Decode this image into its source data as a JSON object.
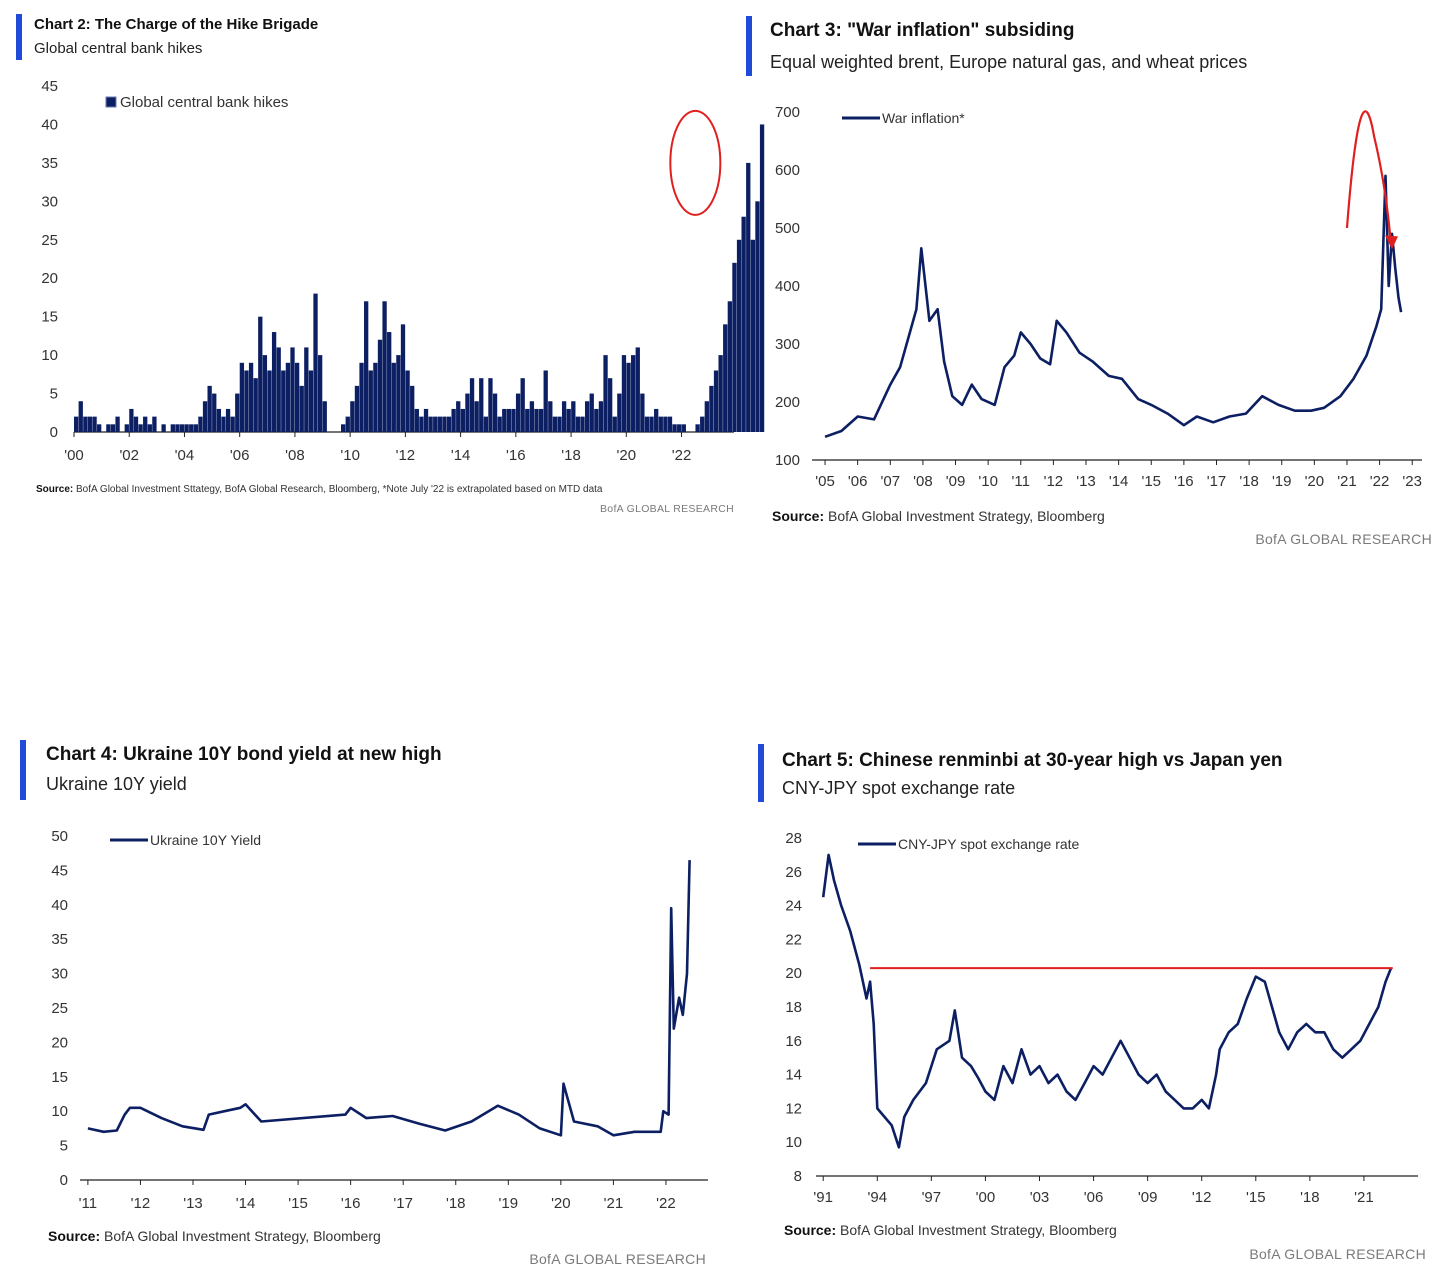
{
  "colors": {
    "navy": "#0d1f63",
    "accent_bar": "#1f4bd8",
    "highlight_red": "#e02020",
    "axis": "#222222"
  },
  "panels": [
    {
      "title": "Chart 2: The Charge of the Hike Brigade",
      "subtitle": "Global central bank hikes",
      "source_label": "Source:",
      "source_text": "BofA Global Investment Sttategy, BofA Global Research, Bloomberg, *Note July '22 is extrapolated based on MTD data",
      "brand": "BofA GLOBAL RESEARCH"
    },
    {
      "title": "Chart 3: \"War inflation\" subsiding",
      "subtitle": "Equal weighted brent, Europe natural gas, and wheat prices",
      "source_label": "Source:",
      "source_text": "BofA Global Investment Strategy, Bloomberg",
      "brand": "BofA GLOBAL RESEARCH"
    },
    {
      "title": "Chart 4: Ukraine 10Y bond yield at new high",
      "subtitle": "Ukraine 10Y yield",
      "source_label": "Source:",
      "source_text": "BofA Global Investment Strategy, Bloomberg",
      "brand": "BofA GLOBAL RESEARCH"
    },
    {
      "title": "Chart 5: Chinese renminbi at 30-year high vs Japan yen",
      "subtitle": "CNY-JPY spot exchange rate",
      "source_label": "Source:",
      "source_text": "BofA Global Investment Strategy, Bloomberg",
      "brand": "BofA GLOBAL RESEARCH"
    }
  ],
  "chart_data": [
    {
      "type": "bar",
      "legend": "Global central bank hikes",
      "ylim": [
        0,
        45
      ],
      "y_ticks": [
        "0",
        "5",
        "10",
        "15",
        "20",
        "25",
        "30",
        "35",
        "40",
        "45"
      ],
      "x_tick_labels": [
        "'00",
        "'02",
        "'04",
        "'06",
        "'08",
        "'10",
        "'12",
        "'14",
        "'16",
        "'18",
        "'20",
        "'22"
      ],
      "x_tick_years": [
        2000,
        2002,
        2004,
        2006,
        2008,
        2010,
        2012,
        2014,
        2016,
        2018,
        2020,
        2022
      ],
      "xlim": [
        2000,
        2023.9
      ],
      "start_year": 2000.0,
      "step_year": 0.1667,
      "values": [
        2,
        4,
        2,
        2,
        2,
        1,
        0,
        1,
        1,
        2,
        0,
        1,
        3,
        2,
        1,
        2,
        1,
        2,
        0,
        1,
        0,
        1,
        1,
        1,
        1,
        1,
        1,
        2,
        4,
        6,
        5,
        3,
        2,
        3,
        2,
        5,
        9,
        8,
        9,
        7,
        15,
        10,
        8,
        13,
        11,
        8,
        9,
        11,
        9,
        6,
        11,
        8,
        18,
        10,
        4,
        0,
        0,
        0,
        1,
        2,
        4,
        6,
        9,
        17,
        8,
        9,
        12,
        17,
        13,
        9,
        10,
        14,
        8,
        6,
        3,
        2,
        3,
        2,
        2,
        2,
        2,
        2,
        3,
        4,
        3,
        5,
        7,
        4,
        7,
        2,
        7,
        5,
        2,
        3,
        3,
        3,
        5,
        7,
        3,
        4,
        3,
        3,
        8,
        4,
        2,
        2,
        4,
        3,
        4,
        2,
        2,
        4,
        5,
        3,
        4,
        10,
        7,
        2,
        5,
        10,
        9,
        10,
        11,
        5,
        2,
        2,
        3,
        2,
        2,
        2,
        1,
        1,
        1,
        0,
        0,
        1,
        2,
        4,
        6,
        8,
        10,
        14,
        17,
        22,
        25,
        28,
        35,
        25,
        30,
        40
      ],
      "highlight": {
        "shape": "circle",
        "around_year": 2022.5,
        "around_value": 35,
        "color": "#e02020"
      }
    },
    {
      "type": "line",
      "legend": "War inflation*",
      "ylim": [
        100,
        700
      ],
      "y_ticks": [
        "100",
        "200",
        "300",
        "400",
        "500",
        "600",
        "700"
      ],
      "x_tick_labels": [
        "'05",
        "'06",
        "'07",
        "'08",
        "'09",
        "'10",
        "'11",
        "'12",
        "'13",
        "'14",
        "'15",
        "'16",
        "'17",
        "'18",
        "'19",
        "'20",
        "'21",
        "'22",
        "'23"
      ],
      "x_tick_years": [
        2005,
        2006,
        2007,
        2008,
        2009,
        2010,
        2011,
        2012,
        2013,
        2014,
        2015,
        2016,
        2017,
        2018,
        2019,
        2020,
        2021,
        2022,
        2023
      ],
      "xlim": [
        2004.6,
        2023.3
      ],
      "points": [
        [
          2005.0,
          140
        ],
        [
          2005.5,
          150
        ],
        [
          2006.0,
          175
        ],
        [
          2006.5,
          170
        ],
        [
          2007.0,
          230
        ],
        [
          2007.3,
          260
        ],
        [
          2007.6,
          320
        ],
        [
          2007.8,
          360
        ],
        [
          2007.95,
          465
        ],
        [
          2008.2,
          340
        ],
        [
          2008.45,
          360
        ],
        [
          2008.65,
          270
        ],
        [
          2008.9,
          210
        ],
        [
          2009.2,
          195
        ],
        [
          2009.5,
          230
        ],
        [
          2009.8,
          205
        ],
        [
          2010.2,
          195
        ],
        [
          2010.5,
          260
        ],
        [
          2010.8,
          280
        ],
        [
          2011.0,
          320
        ],
        [
          2011.3,
          300
        ],
        [
          2011.6,
          275
        ],
        [
          2011.9,
          265
        ],
        [
          2012.1,
          340
        ],
        [
          2012.4,
          320
        ],
        [
          2012.8,
          285
        ],
        [
          2013.2,
          270
        ],
        [
          2013.7,
          245
        ],
        [
          2014.1,
          240
        ],
        [
          2014.6,
          205
        ],
        [
          2015.0,
          195
        ],
        [
          2015.5,
          180
        ],
        [
          2016.0,
          160
        ],
        [
          2016.4,
          175
        ],
        [
          2016.9,
          165
        ],
        [
          2017.4,
          175
        ],
        [
          2017.9,
          180
        ],
        [
          2018.4,
          210
        ],
        [
          2018.9,
          195
        ],
        [
          2019.4,
          185
        ],
        [
          2019.9,
          185
        ],
        [
          2020.3,
          190
        ],
        [
          2020.8,
          210
        ],
        [
          2021.2,
          240
        ],
        [
          2021.6,
          280
        ],
        [
          2021.9,
          330
        ],
        [
          2022.05,
          360
        ],
        [
          2022.18,
          590
        ],
        [
          2022.28,
          400
        ],
        [
          2022.38,
          490
        ],
        [
          2022.48,
          430
        ],
        [
          2022.58,
          380
        ],
        [
          2022.66,
          355
        ]
      ],
      "highlight": {
        "shape": "arrow",
        "description": "peak and decline",
        "color": "#e02020"
      }
    },
    {
      "type": "line",
      "legend": "Ukraine 10Y Yield",
      "ylim": [
        0,
        50
      ],
      "y_ticks": [
        "0",
        "5",
        "10",
        "15",
        "20",
        "25",
        "30",
        "35",
        "40",
        "45",
        "50"
      ],
      "x_tick_labels": [
        "'11",
        "'12",
        "'13",
        "'14",
        "'15",
        "'16",
        "'17",
        "'18",
        "'19",
        "'20",
        "'21",
        "'22"
      ],
      "x_tick_years": [
        2011,
        2012,
        2013,
        2014,
        2015,
        2016,
        2017,
        2018,
        2019,
        2020,
        2021,
        2022
      ],
      "xlim": [
        2010.85,
        2022.8
      ],
      "points": [
        [
          2011.0,
          7.5
        ],
        [
          2011.3,
          7.0
        ],
        [
          2011.55,
          7.2
        ],
        [
          2011.7,
          9.5
        ],
        [
          2011.8,
          10.5
        ],
        [
          2012.0,
          10.5
        ],
        [
          2012.4,
          9.0
        ],
        [
          2012.8,
          7.8
        ],
        [
          2013.2,
          7.3
        ],
        [
          2013.3,
          9.5
        ],
        [
          2013.6,
          10.0
        ],
        [
          2013.9,
          10.5
        ],
        [
          2014.0,
          11.0
        ],
        [
          2014.3,
          8.5
        ],
        [
          2015.9,
          9.5
        ],
        [
          2016.0,
          10.5
        ],
        [
          2016.3,
          9.0
        ],
        [
          2016.8,
          9.3
        ],
        [
          2017.3,
          8.2
        ],
        [
          2017.8,
          7.2
        ],
        [
          2018.3,
          8.5
        ],
        [
          2018.8,
          10.8
        ],
        [
          2019.2,
          9.5
        ],
        [
          2019.6,
          7.5
        ],
        [
          2020.0,
          6.5
        ],
        [
          2020.05,
          14.0
        ],
        [
          2020.25,
          8.5
        ],
        [
          2020.7,
          7.8
        ],
        [
          2021.0,
          6.5
        ],
        [
          2021.4,
          7.0
        ],
        [
          2021.9,
          7.0
        ],
        [
          2021.95,
          10.0
        ],
        [
          2022.05,
          9.5
        ],
        [
          2022.1,
          39.5
        ],
        [
          2022.15,
          22.0
        ],
        [
          2022.25,
          26.5
        ],
        [
          2022.32,
          24.0
        ],
        [
          2022.4,
          30.0
        ],
        [
          2022.45,
          46.5
        ]
      ]
    },
    {
      "type": "line",
      "legend": "CNY-JPY spot exchange rate",
      "ylim": [
        8,
        28
      ],
      "y_ticks": [
        "8",
        "10",
        "12",
        "14",
        "16",
        "18",
        "20",
        "22",
        "24",
        "26",
        "28"
      ],
      "x_tick_labels": [
        "'91",
        "'94",
        "'97",
        "'00",
        "'03",
        "'06",
        "'09",
        "'12",
        "'15",
        "'18",
        "'21"
      ],
      "x_tick_years": [
        1991,
        1994,
        1997,
        2000,
        2003,
        2006,
        2009,
        2012,
        2015,
        2018,
        2021
      ],
      "xlim": [
        1990.6,
        2024.0
      ],
      "points": [
        [
          1991.0,
          24.5
        ],
        [
          1991.3,
          27.0
        ],
        [
          1991.6,
          25.5
        ],
        [
          1992.0,
          24.0
        ],
        [
          1992.5,
          22.5
        ],
        [
          1993.0,
          20.5
        ],
        [
          1993.4,
          18.5
        ],
        [
          1993.6,
          19.5
        ],
        [
          1993.8,
          17.0
        ],
        [
          1994.0,
          12.0
        ],
        [
          1994.4,
          11.5
        ],
        [
          1994.8,
          11.0
        ],
        [
          1995.2,
          9.7
        ],
        [
          1995.5,
          11.5
        ],
        [
          1996.0,
          12.5
        ],
        [
          1996.7,
          13.5
        ],
        [
          1997.3,
          15.5
        ],
        [
          1998.0,
          16.0
        ],
        [
          1998.3,
          17.8
        ],
        [
          1998.7,
          15.0
        ],
        [
          1999.2,
          14.5
        ],
        [
          1999.6,
          13.8
        ],
        [
          2000.0,
          13.0
        ],
        [
          2000.5,
          12.5
        ],
        [
          2001.0,
          14.5
        ],
        [
          2001.5,
          13.5
        ],
        [
          2002.0,
          15.5
        ],
        [
          2002.5,
          14.0
        ],
        [
          2003.0,
          14.5
        ],
        [
          2003.5,
          13.5
        ],
        [
          2004.0,
          14.0
        ],
        [
          2004.5,
          13.0
        ],
        [
          2005.0,
          12.5
        ],
        [
          2005.5,
          13.5
        ],
        [
          2006.0,
          14.5
        ],
        [
          2006.5,
          14.0
        ],
        [
          2007.0,
          15.0
        ],
        [
          2007.5,
          16.0
        ],
        [
          2008.0,
          15.0
        ],
        [
          2008.5,
          14.0
        ],
        [
          2009.0,
          13.5
        ],
        [
          2009.5,
          14.0
        ],
        [
          2010.0,
          13.0
        ],
        [
          2010.5,
          12.5
        ],
        [
          2011.0,
          12.0
        ],
        [
          2011.5,
          12.0
        ],
        [
          2012.0,
          12.5
        ],
        [
          2012.4,
          12.0
        ],
        [
          2012.8,
          14.0
        ],
        [
          2013.0,
          15.5
        ],
        [
          2013.5,
          16.5
        ],
        [
          2014.0,
          17.0
        ],
        [
          2014.5,
          18.5
        ],
        [
          2015.0,
          19.8
        ],
        [
          2015.5,
          19.5
        ],
        [
          2015.9,
          18.0
        ],
        [
          2016.3,
          16.5
        ],
        [
          2016.8,
          15.5
        ],
        [
          2017.3,
          16.5
        ],
        [
          2017.8,
          17.0
        ],
        [
          2018.3,
          16.5
        ],
        [
          2018.8,
          16.5
        ],
        [
          2019.3,
          15.5
        ],
        [
          2019.8,
          15.0
        ],
        [
          2020.3,
          15.5
        ],
        [
          2020.8,
          16.0
        ],
        [
          2021.3,
          17.0
        ],
        [
          2021.8,
          18.0
        ],
        [
          2022.2,
          19.5
        ],
        [
          2022.5,
          20.3
        ]
      ],
      "reference_line": {
        "value": 20.3,
        "color": "#e02020"
      }
    }
  ]
}
